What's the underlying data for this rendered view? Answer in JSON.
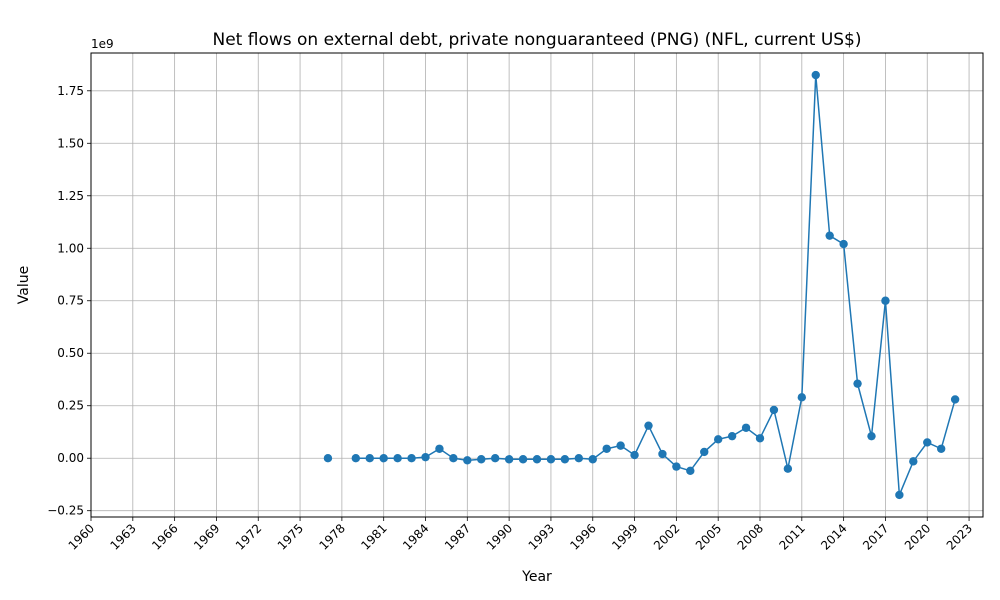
{
  "chart_data": {
    "type": "line",
    "title": "Net flows on external debt, private nonguaranteed (PNG) (NFL, current US$)",
    "xlabel": "Year",
    "ylabel": "Value",
    "y_offset_label": "1e9",
    "y_scale_factor": 1000000000,
    "xlim": [
      1960,
      2024
    ],
    "ylim": [
      -0.28,
      1.93
    ],
    "x_ticks": [
      1960,
      1963,
      1966,
      1969,
      1972,
      1975,
      1978,
      1981,
      1984,
      1987,
      1990,
      1993,
      1996,
      1999,
      2002,
      2005,
      2008,
      2011,
      2014,
      2017,
      2020,
      2023
    ],
    "y_ticks": [
      -0.25,
      0.0,
      0.25,
      0.5,
      0.75,
      1.0,
      1.25,
      1.5,
      1.75
    ],
    "y_tick_labels": [
      "−0.25",
      "0.00",
      "0.25",
      "0.50",
      "0.75",
      "1.00",
      "1.25",
      "1.50",
      "1.75"
    ],
    "grid": true,
    "legend": "none",
    "series": [
      {
        "color": "#1f77b4",
        "marker": "circle",
        "segments": [
          {
            "x": [
              1977
            ],
            "y": [
              0.0
            ]
          },
          {
            "x": [
              1979,
              1980,
              1981,
              1982,
              1983,
              1984,
              1985,
              1986,
              1987,
              1988,
              1989,
              1990,
              1991,
              1992,
              1993,
              1994,
              1995,
              1996,
              1997,
              1998,
              1999,
              2000,
              2001,
              2002,
              2003,
              2004,
              2005,
              2006,
              2007,
              2008,
              2009,
              2010,
              2011,
              2012,
              2013,
              2014,
              2015,
              2016,
              2017,
              2018,
              2019,
              2020,
              2021,
              2022
            ],
            "y": [
              0.0,
              0.0,
              0.0,
              0.0,
              0.0,
              0.005,
              0.045,
              0.0,
              -0.01,
              -0.005,
              0.0,
              -0.005,
              -0.005,
              -0.005,
              -0.005,
              -0.005,
              0.0,
              -0.005,
              0.045,
              0.06,
              0.015,
              0.155,
              0.02,
              -0.04,
              -0.06,
              0.03,
              0.09,
              0.105,
              0.145,
              0.095,
              0.23,
              -0.05,
              0.29,
              1.825,
              1.06,
              1.02,
              0.355,
              0.105,
              0.75,
              -0.175,
              -0.015,
              0.075,
              0.045,
              0.28
            ]
          }
        ]
      }
    ]
  }
}
